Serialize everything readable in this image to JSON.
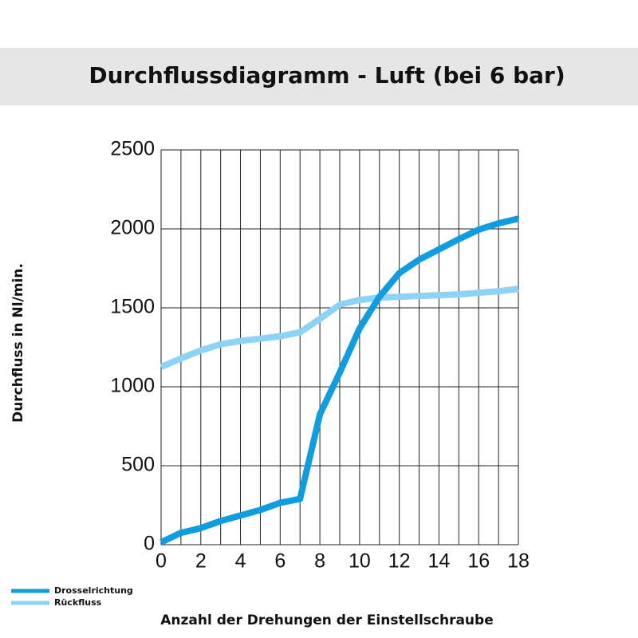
{
  "chart_data": {
    "type": "line",
    "title": "Durchflussdiagramm - Luft (bei 6 bar)",
    "x_label": "Anzahl der Drehungen der Einstellschraube",
    "y_label": "Durchfluss in Nl/min.",
    "x": [
      0,
      1,
      2,
      3,
      4,
      5,
      6,
      7,
      8,
      9,
      10,
      11,
      12,
      13,
      14,
      15,
      16,
      17,
      18
    ],
    "series": [
      {
        "name": "Drosselrichtung",
        "color": "#0f9de0",
        "values": [
          15,
          75,
          105,
          150,
          185,
          220,
          265,
          290,
          825,
          1090,
          1370,
          1570,
          1720,
          1805,
          1870,
          1935,
          1995,
          2035,
          2065
        ]
      },
      {
        "name": "Rückfluss",
        "color": "#8dd3f5",
        "values": [
          1125,
          1180,
          1230,
          1270,
          1290,
          1305,
          1320,
          1345,
          1430,
          1520,
          1550,
          1565,
          1570,
          1575,
          1580,
          1585,
          1595,
          1605,
          1620
        ]
      }
    ],
    "xlim": [
      0,
      18
    ],
    "xticks": [
      0,
      2,
      4,
      6,
      8,
      10,
      12,
      14,
      16,
      18
    ],
    "xgrid": [
      0,
      1,
      2,
      3,
      4,
      5,
      6,
      7,
      8,
      9,
      10,
      11,
      12,
      13,
      14,
      15,
      16,
      17,
      18
    ],
    "ylim": [
      0,
      2500
    ],
    "yticks": [
      0,
      500,
      1000,
      1500,
      2000,
      2500
    ],
    "grid": true,
    "legend": "bottom-left"
  }
}
